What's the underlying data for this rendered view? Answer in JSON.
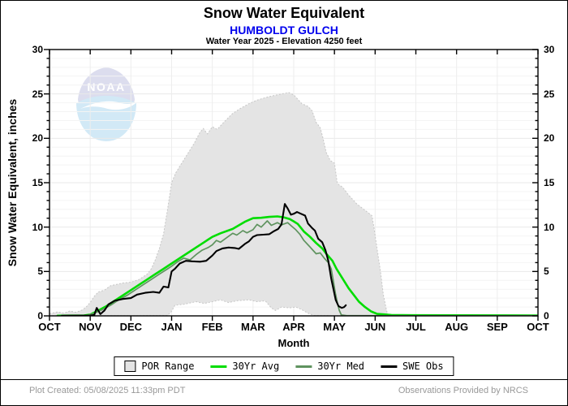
{
  "header": {
    "title": "Snow Water Equivalent",
    "station": "HUMBOLDT GULCH",
    "subtitle": "Water Year 2025 -  Elevation 4250 feet"
  },
  "watermark": {
    "name": "noaa-logo",
    "text": "NOAA"
  },
  "legend": {
    "items": [
      {
        "label": "POR Range",
        "swatch": "box",
        "color": "#e4e4e4",
        "border": "#000000"
      },
      {
        "label": "30Yr Avg",
        "swatch": "line",
        "color": "#00dd00"
      },
      {
        "label": "30Yr Med",
        "swatch": "line",
        "color": "#5f935f"
      },
      {
        "label": "SWE Obs",
        "swatch": "line",
        "color": "#000000"
      }
    ]
  },
  "footer": {
    "created": "Plot Created: 05/08/2025 11:33pm PDT",
    "source": "Observations Provided by NRCS"
  },
  "chart_data": {
    "type": "line",
    "title": "Snow Water Equivalent",
    "station": "HUMBOLDT GULCH",
    "water_year": 2025,
    "elevation_feet": 4250,
    "xlabel": "Month",
    "ylabel": "Snow Water Equivalent, inches",
    "x_unit": "months since Oct 1",
    "xlim": [
      0,
      12
    ],
    "ylim": [
      0,
      30
    ],
    "x_tick_labels": [
      "OCT",
      "NOV",
      "DEC",
      "JAN",
      "FEB",
      "MAR",
      "APR",
      "MAY",
      "JUN",
      "JUL",
      "AUG",
      "SEP",
      "OCT"
    ],
    "y_ticks": [
      0,
      5,
      10,
      15,
      20,
      25,
      30
    ],
    "grid": true,
    "legend_position": "bottom",
    "series": [
      {
        "name": "POR Range",
        "type": "band",
        "fill": "#e4e4e4",
        "edge": "#c6c6c6",
        "upper": [
          [
            0,
            0.25
          ],
          [
            0.2,
            0.45
          ],
          [
            0.35,
            0.3
          ],
          [
            0.5,
            0.55
          ],
          [
            0.65,
            0.4
          ],
          [
            0.8,
            0.65
          ],
          [
            0.9,
            1.0
          ],
          [
            1.0,
            1.5
          ],
          [
            1.1,
            2.2
          ],
          [
            1.2,
            2.7
          ],
          [
            1.35,
            2.9
          ],
          [
            1.5,
            3.4
          ],
          [
            1.65,
            3.55
          ],
          [
            1.8,
            3.7
          ],
          [
            2.0,
            3.8
          ],
          [
            2.2,
            4.1
          ],
          [
            2.4,
            4.7
          ],
          [
            2.5,
            5.3
          ],
          [
            2.6,
            6.3
          ],
          [
            2.7,
            7.6
          ],
          [
            2.8,
            9.2
          ],
          [
            2.9,
            12.0
          ],
          [
            3.0,
            15.0
          ],
          [
            3.1,
            16.1
          ],
          [
            3.25,
            17.2
          ],
          [
            3.4,
            18.3
          ],
          [
            3.55,
            19.4
          ],
          [
            3.7,
            20.7
          ],
          [
            3.78,
            21.1
          ],
          [
            3.88,
            20.5
          ],
          [
            4.0,
            21.3
          ],
          [
            4.12,
            21.0
          ],
          [
            4.3,
            21.9
          ],
          [
            4.5,
            22.8
          ],
          [
            4.7,
            23.4
          ],
          [
            4.9,
            23.9
          ],
          [
            5.1,
            24.3
          ],
          [
            5.4,
            24.7
          ],
          [
            5.7,
            25.0
          ],
          [
            5.88,
            25.15
          ],
          [
            6.0,
            24.9
          ],
          [
            6.1,
            24.4
          ],
          [
            6.2,
            23.9
          ],
          [
            6.35,
            23.6
          ],
          [
            6.45,
            23.1
          ],
          [
            6.55,
            21.8
          ],
          [
            6.65,
            21.2
          ],
          [
            6.72,
            20.0
          ],
          [
            6.8,
            18.4
          ],
          [
            6.9,
            17.5
          ],
          [
            7.0,
            17.2
          ],
          [
            7.07,
            14.9
          ],
          [
            7.2,
            14.5
          ],
          [
            7.35,
            13.6
          ],
          [
            7.55,
            12.6
          ],
          [
            7.75,
            11.9
          ],
          [
            7.92,
            11.3
          ],
          [
            7.97,
            10.0
          ],
          [
            8.05,
            7.5
          ],
          [
            8.13,
            5.0
          ],
          [
            8.2,
            2.4
          ],
          [
            8.28,
            0.6
          ],
          [
            8.32,
            0.05
          ]
        ],
        "lower": [
          [
            0,
            0.02
          ],
          [
            2.9,
            0.05
          ],
          [
            3.0,
            0.5
          ],
          [
            3.08,
            1.2
          ],
          [
            3.3,
            1.3
          ],
          [
            3.6,
            1.6
          ],
          [
            3.8,
            1.4
          ],
          [
            4.0,
            1.6
          ],
          [
            4.2,
            1.8
          ],
          [
            4.4,
            1.5
          ],
          [
            4.6,
            1.7
          ],
          [
            4.9,
            1.8
          ],
          [
            5.1,
            1.6
          ],
          [
            5.3,
            1.7
          ],
          [
            5.45,
            0.9
          ],
          [
            5.55,
            0.6
          ],
          [
            5.7,
            1.0
          ],
          [
            5.9,
            0.9
          ],
          [
            6.05,
            1.0
          ],
          [
            6.2,
            0.7
          ],
          [
            6.35,
            0.3
          ],
          [
            6.5,
            0.05
          ],
          [
            8.32,
            0.02
          ]
        ]
      },
      {
        "name": "30Yr Avg",
        "type": "line",
        "color": "#00dd00",
        "width": 2.6,
        "points": [
          [
            0.2,
            0.02
          ],
          [
            0.85,
            0.05
          ],
          [
            1.0,
            0.15
          ],
          [
            1.2,
            0.6
          ],
          [
            1.4,
            1.1
          ],
          [
            1.6,
            1.7
          ],
          [
            1.8,
            2.3
          ],
          [
            2.0,
            2.9
          ],
          [
            2.2,
            3.5
          ],
          [
            2.4,
            4.1
          ],
          [
            2.6,
            4.7
          ],
          [
            2.8,
            5.3
          ],
          [
            3.0,
            5.9
          ],
          [
            3.2,
            6.5
          ],
          [
            3.4,
            7.1
          ],
          [
            3.6,
            7.7
          ],
          [
            3.8,
            8.3
          ],
          [
            4.0,
            8.9
          ],
          [
            4.2,
            9.3
          ],
          [
            4.5,
            9.8
          ],
          [
            4.8,
            10.6
          ],
          [
            5.0,
            11.0
          ],
          [
            5.2,
            11.05
          ],
          [
            5.4,
            11.15
          ],
          [
            5.6,
            11.2
          ],
          [
            5.75,
            11.1
          ],
          [
            5.9,
            10.9
          ],
          [
            6.0,
            10.65
          ],
          [
            6.1,
            10.35
          ],
          [
            6.25,
            9.5
          ],
          [
            6.4,
            8.9
          ],
          [
            6.55,
            8.2
          ],
          [
            6.7,
            7.6
          ],
          [
            6.8,
            7.0
          ],
          [
            6.95,
            6.2
          ],
          [
            7.05,
            5.3
          ],
          [
            7.2,
            4.2
          ],
          [
            7.35,
            3.1
          ],
          [
            7.5,
            2.2
          ],
          [
            7.6,
            1.6
          ],
          [
            7.75,
            1.0
          ],
          [
            7.9,
            0.5
          ],
          [
            8.05,
            0.22
          ],
          [
            8.4,
            0.1
          ],
          [
            9.0,
            0.07
          ],
          [
            12,
            0.05
          ]
        ]
      },
      {
        "name": "30Yr Med",
        "type": "line",
        "color": "#5f935f",
        "width": 1.7,
        "points": [
          [
            0.9,
            0.02
          ],
          [
            1.1,
            0.3
          ],
          [
            1.3,
            0.7
          ],
          [
            1.5,
            1.2
          ],
          [
            1.7,
            1.8
          ],
          [
            1.9,
            2.3
          ],
          [
            2.1,
            2.9
          ],
          [
            2.3,
            3.5
          ],
          [
            2.5,
            4.1
          ],
          [
            2.7,
            4.7
          ],
          [
            2.9,
            5.3
          ],
          [
            3.0,
            5.6
          ],
          [
            3.15,
            6.1
          ],
          [
            3.3,
            6.5
          ],
          [
            3.45,
            6.3
          ],
          [
            3.6,
            6.9
          ],
          [
            3.75,
            7.4
          ],
          [
            3.9,
            7.7
          ],
          [
            4.0,
            8.0
          ],
          [
            4.1,
            8.5
          ],
          [
            4.2,
            8.3
          ],
          [
            4.35,
            8.8
          ],
          [
            4.5,
            9.3
          ],
          [
            4.6,
            9.1
          ],
          [
            4.75,
            9.6
          ],
          [
            4.85,
            9.35
          ],
          [
            5.0,
            9.7
          ],
          [
            5.1,
            10.3
          ],
          [
            5.2,
            10.0
          ],
          [
            5.35,
            10.7
          ],
          [
            5.45,
            10.2
          ],
          [
            5.6,
            10.5
          ],
          [
            5.7,
            10.25
          ],
          [
            5.85,
            10.5
          ],
          [
            5.95,
            10.1
          ],
          [
            6.05,
            9.7
          ],
          [
            6.15,
            9.2
          ],
          [
            6.25,
            8.5
          ],
          [
            6.35,
            8.0
          ],
          [
            6.45,
            7.5
          ],
          [
            6.55,
            7.0
          ],
          [
            6.65,
            7.1
          ],
          [
            6.75,
            6.5
          ],
          [
            6.85,
            6.0
          ],
          [
            6.92,
            5.3
          ],
          [
            6.97,
            4.0
          ],
          [
            7.02,
            2.6
          ],
          [
            7.07,
            1.5
          ],
          [
            7.12,
            0.6
          ],
          [
            7.17,
            0.1
          ],
          [
            7.3,
            0.03
          ],
          [
            12,
            0.03
          ]
        ]
      },
      {
        "name": "SWE Obs",
        "type": "line",
        "color": "#000000",
        "width": 2.1,
        "points": [
          [
            0.3,
            0.02
          ],
          [
            1.0,
            0.05
          ],
          [
            1.1,
            0.1
          ],
          [
            1.16,
            0.9
          ],
          [
            1.25,
            0.2
          ],
          [
            1.35,
            0.6
          ],
          [
            1.45,
            1.3
          ],
          [
            1.6,
            1.7
          ],
          [
            1.8,
            1.9
          ],
          [
            2.0,
            2.0
          ],
          [
            2.15,
            2.4
          ],
          [
            2.35,
            2.6
          ],
          [
            2.55,
            2.7
          ],
          [
            2.7,
            2.6
          ],
          [
            2.8,
            3.3
          ],
          [
            2.92,
            3.2
          ],
          [
            3.0,
            5.0
          ],
          [
            3.08,
            5.3
          ],
          [
            3.2,
            5.9
          ],
          [
            3.35,
            6.2
          ],
          [
            3.5,
            6.15
          ],
          [
            3.7,
            6.1
          ],
          [
            3.85,
            6.2
          ],
          [
            4.0,
            6.8
          ],
          [
            4.1,
            7.3
          ],
          [
            4.25,
            7.6
          ],
          [
            4.4,
            7.7
          ],
          [
            4.55,
            7.65
          ],
          [
            4.65,
            7.55
          ],
          [
            4.8,
            8.1
          ],
          [
            4.9,
            8.4
          ],
          [
            5.0,
            8.9
          ],
          [
            5.1,
            9.1
          ],
          [
            5.25,
            9.15
          ],
          [
            5.4,
            9.2
          ],
          [
            5.5,
            9.5
          ],
          [
            5.62,
            9.8
          ],
          [
            5.7,
            10.3
          ],
          [
            5.78,
            12.6
          ],
          [
            5.85,
            12.1
          ],
          [
            5.93,
            11.4
          ],
          [
            6.0,
            11.5
          ],
          [
            6.08,
            11.7
          ],
          [
            6.18,
            11.5
          ],
          [
            6.28,
            11.3
          ],
          [
            6.35,
            10.4
          ],
          [
            6.45,
            9.9
          ],
          [
            6.52,
            9.6
          ],
          [
            6.6,
            8.7
          ],
          [
            6.7,
            8.3
          ],
          [
            6.78,
            7.4
          ],
          [
            6.85,
            6.2
          ],
          [
            6.92,
            4.2
          ],
          [
            6.98,
            2.9
          ],
          [
            7.03,
            1.8
          ],
          [
            7.1,
            1.1
          ],
          [
            7.18,
            0.9
          ],
          [
            7.24,
            1.0
          ],
          [
            7.28,
            1.2
          ]
        ]
      }
    ]
  }
}
